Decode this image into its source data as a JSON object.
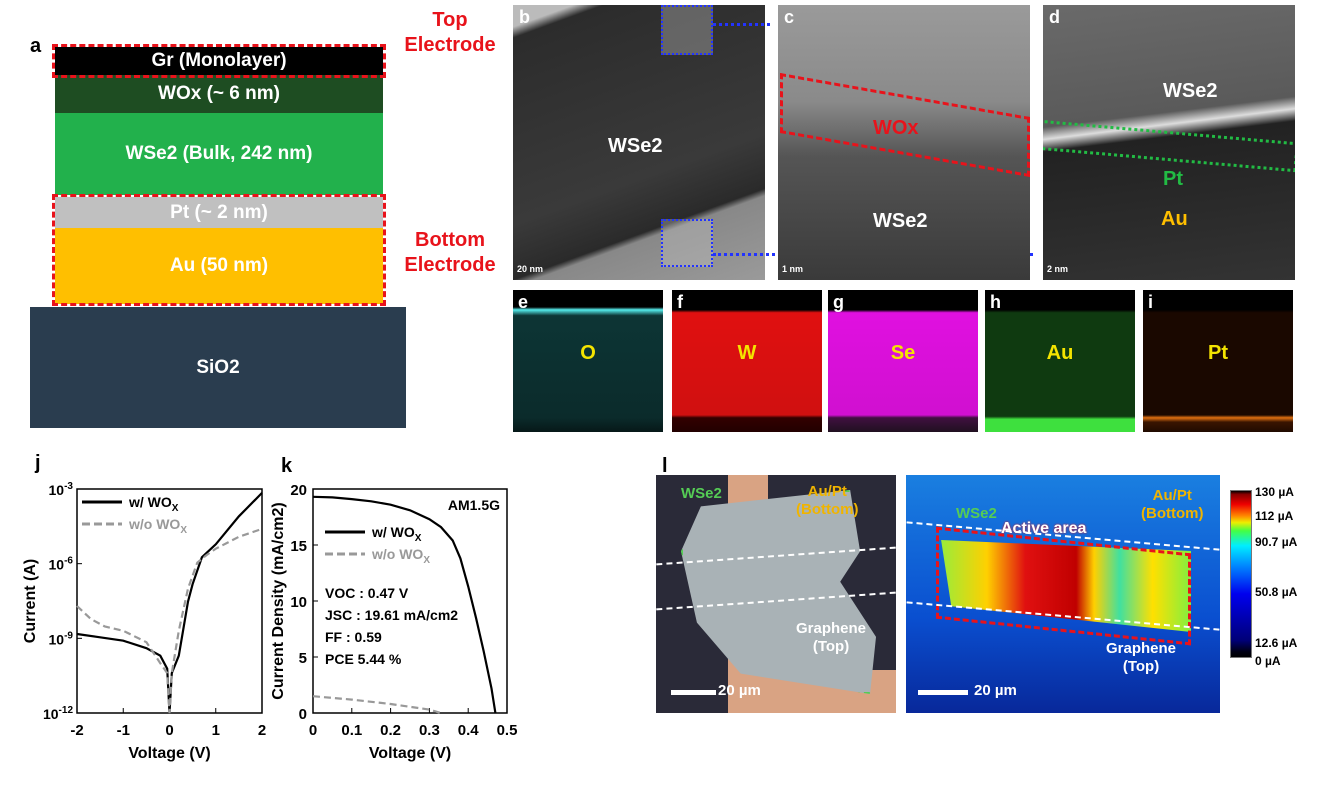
{
  "panel_labels": {
    "a": "a",
    "b": "b",
    "c": "c",
    "d": "d",
    "e": "e",
    "f": "f",
    "g": "g",
    "h": "h",
    "i": "i",
    "j": "j",
    "k": "k",
    "l": "l"
  },
  "stack": {
    "layers": [
      {
        "label": "Gr (Monolayer)",
        "color": "#000000"
      },
      {
        "label": "WOx (~ 6 nm)",
        "color": "#1e4d22"
      },
      {
        "label": "WSe2 (Bulk, 242 nm)",
        "color": "#22b14c"
      },
      {
        "label": "Pt (~ 2 nm)",
        "color": "#c0c0c0"
      },
      {
        "label": "Au (50 nm)",
        "color": "#ffbf00"
      },
      {
        "label": "SiO2",
        "color": "#2a3d4f"
      }
    ],
    "top_electrode": "Top Electrode",
    "bottom_electrode": "Bottom Electrode"
  },
  "tem": {
    "b": {
      "material": "WSe2",
      "scale": "20 nm"
    },
    "c": {
      "wox": "WOx",
      "material": "WSe2",
      "scale": "1 nm"
    },
    "d": {
      "material": "WSe2",
      "pt": "Pt",
      "au": "Au",
      "scale": "2 nm"
    }
  },
  "eds": [
    {
      "element": "O",
      "color": "#2fc9c9"
    },
    {
      "element": "W",
      "color": "#e01010"
    },
    {
      "element": "Se",
      "color": "#e010e0"
    },
    {
      "element": "Au",
      "color": "#1f8a1f"
    },
    {
      "element": "Pt",
      "color": "#e07010"
    }
  ],
  "optical": {
    "wse2": "WSe2",
    "aupt": "Au/Pt",
    "bottom": "(Bottom)",
    "graphene": "Graphene",
    "top": "(Top)",
    "scale": "20 µm",
    "active_area": "Active area"
  },
  "colorbar": {
    "labels": [
      "130 µA",
      "112 µA",
      "90.7 µA",
      "50.8 µA",
      "12.6 µA",
      "0 µA"
    ],
    "values": [
      130,
      112,
      90.7,
      50.8,
      12.6,
      0
    ]
  },
  "chart_data": [
    {
      "type": "line",
      "panel": "j",
      "xlabel": "Voltage (V)",
      "ylabel": "Current (A)",
      "xlim": [
        -2,
        2
      ],
      "ylim": [
        1e-12,
        0.001
      ],
      "yscale": "log",
      "xticks": [
        -2,
        -1,
        0,
        1,
        2
      ],
      "yticks": [
        "10-3",
        "10-6",
        "10-9",
        "10-12"
      ],
      "legend_placement": "top-left",
      "series": [
        {
          "name": "w/ WOX",
          "style": "solid",
          "color": "#000000",
          "x": [
            -2,
            -1.5,
            -1,
            -0.5,
            -0.2,
            -0.05,
            0,
            0.05,
            0.2,
            0.4,
            0.5,
            0.7,
            1,
            1.5,
            2
          ],
          "y": [
            1.5e-09,
            1.1e-09,
            8e-10,
            4e-10,
            2e-10,
            6e-11,
            1e-12,
            4e-11,
            2e-10,
            3e-08,
            1.5e-07,
            1.8e-06,
            6e-06,
            8e-05,
            0.0007
          ]
        },
        {
          "name": "w/o WOX",
          "style": "dashed",
          "color": "#999999",
          "x": [
            -2,
            -1.7,
            -1.4,
            -1,
            -0.5,
            -0.2,
            -0.05,
            0,
            0.05,
            0.2,
            0.4,
            0.6,
            0.8,
            1,
            1.5,
            2
          ],
          "y": [
            2e-08,
            6e-09,
            3e-09,
            2e-09,
            7e-10,
            1e-10,
            4e-11,
            1e-12,
            4e-11,
            2e-09,
            1e-07,
            1.1e-06,
            2.2e-06,
            4e-06,
            1.2e-05,
            2.5e-05
          ]
        }
      ]
    },
    {
      "type": "line",
      "panel": "k",
      "xlabel": "Voltage (V)",
      "ylabel": "Current Density (mA/cm2)",
      "xlim": [
        0,
        0.5
      ],
      "ylim": [
        0,
        20
      ],
      "xticks": [
        0,
        0.1,
        0.2,
        0.3,
        0.4,
        0.5
      ],
      "yticks": [
        0,
        5,
        10,
        15,
        20
      ],
      "legend_placement": "top-left",
      "annotation_top_right": "AM1.5G",
      "metrics": [
        "VOC : 0.47 V",
        "JSC : 19.61 mA/cm2",
        "FF : 0.59",
        "PCE 5.44 %"
      ],
      "series": [
        {
          "name": "w/ WOX",
          "style": "solid",
          "color": "#000000",
          "x": [
            0,
            0.05,
            0.1,
            0.15,
            0.2,
            0.25,
            0.3,
            0.33,
            0.36,
            0.38,
            0.4,
            0.42,
            0.44,
            0.46,
            0.47
          ],
          "y": [
            19.3,
            19.25,
            19.1,
            18.9,
            18.6,
            18.1,
            17.3,
            16.6,
            15.4,
            13.8,
            11.3,
            8.5,
            5.5,
            2.2,
            0
          ]
        },
        {
          "name": "w/o WOX",
          "style": "dashed",
          "color": "#999999",
          "x": [
            0,
            0.1,
            0.2,
            0.3,
            0.33
          ],
          "y": [
            1.5,
            1.2,
            0.8,
            0.3,
            0
          ]
        }
      ]
    }
  ]
}
